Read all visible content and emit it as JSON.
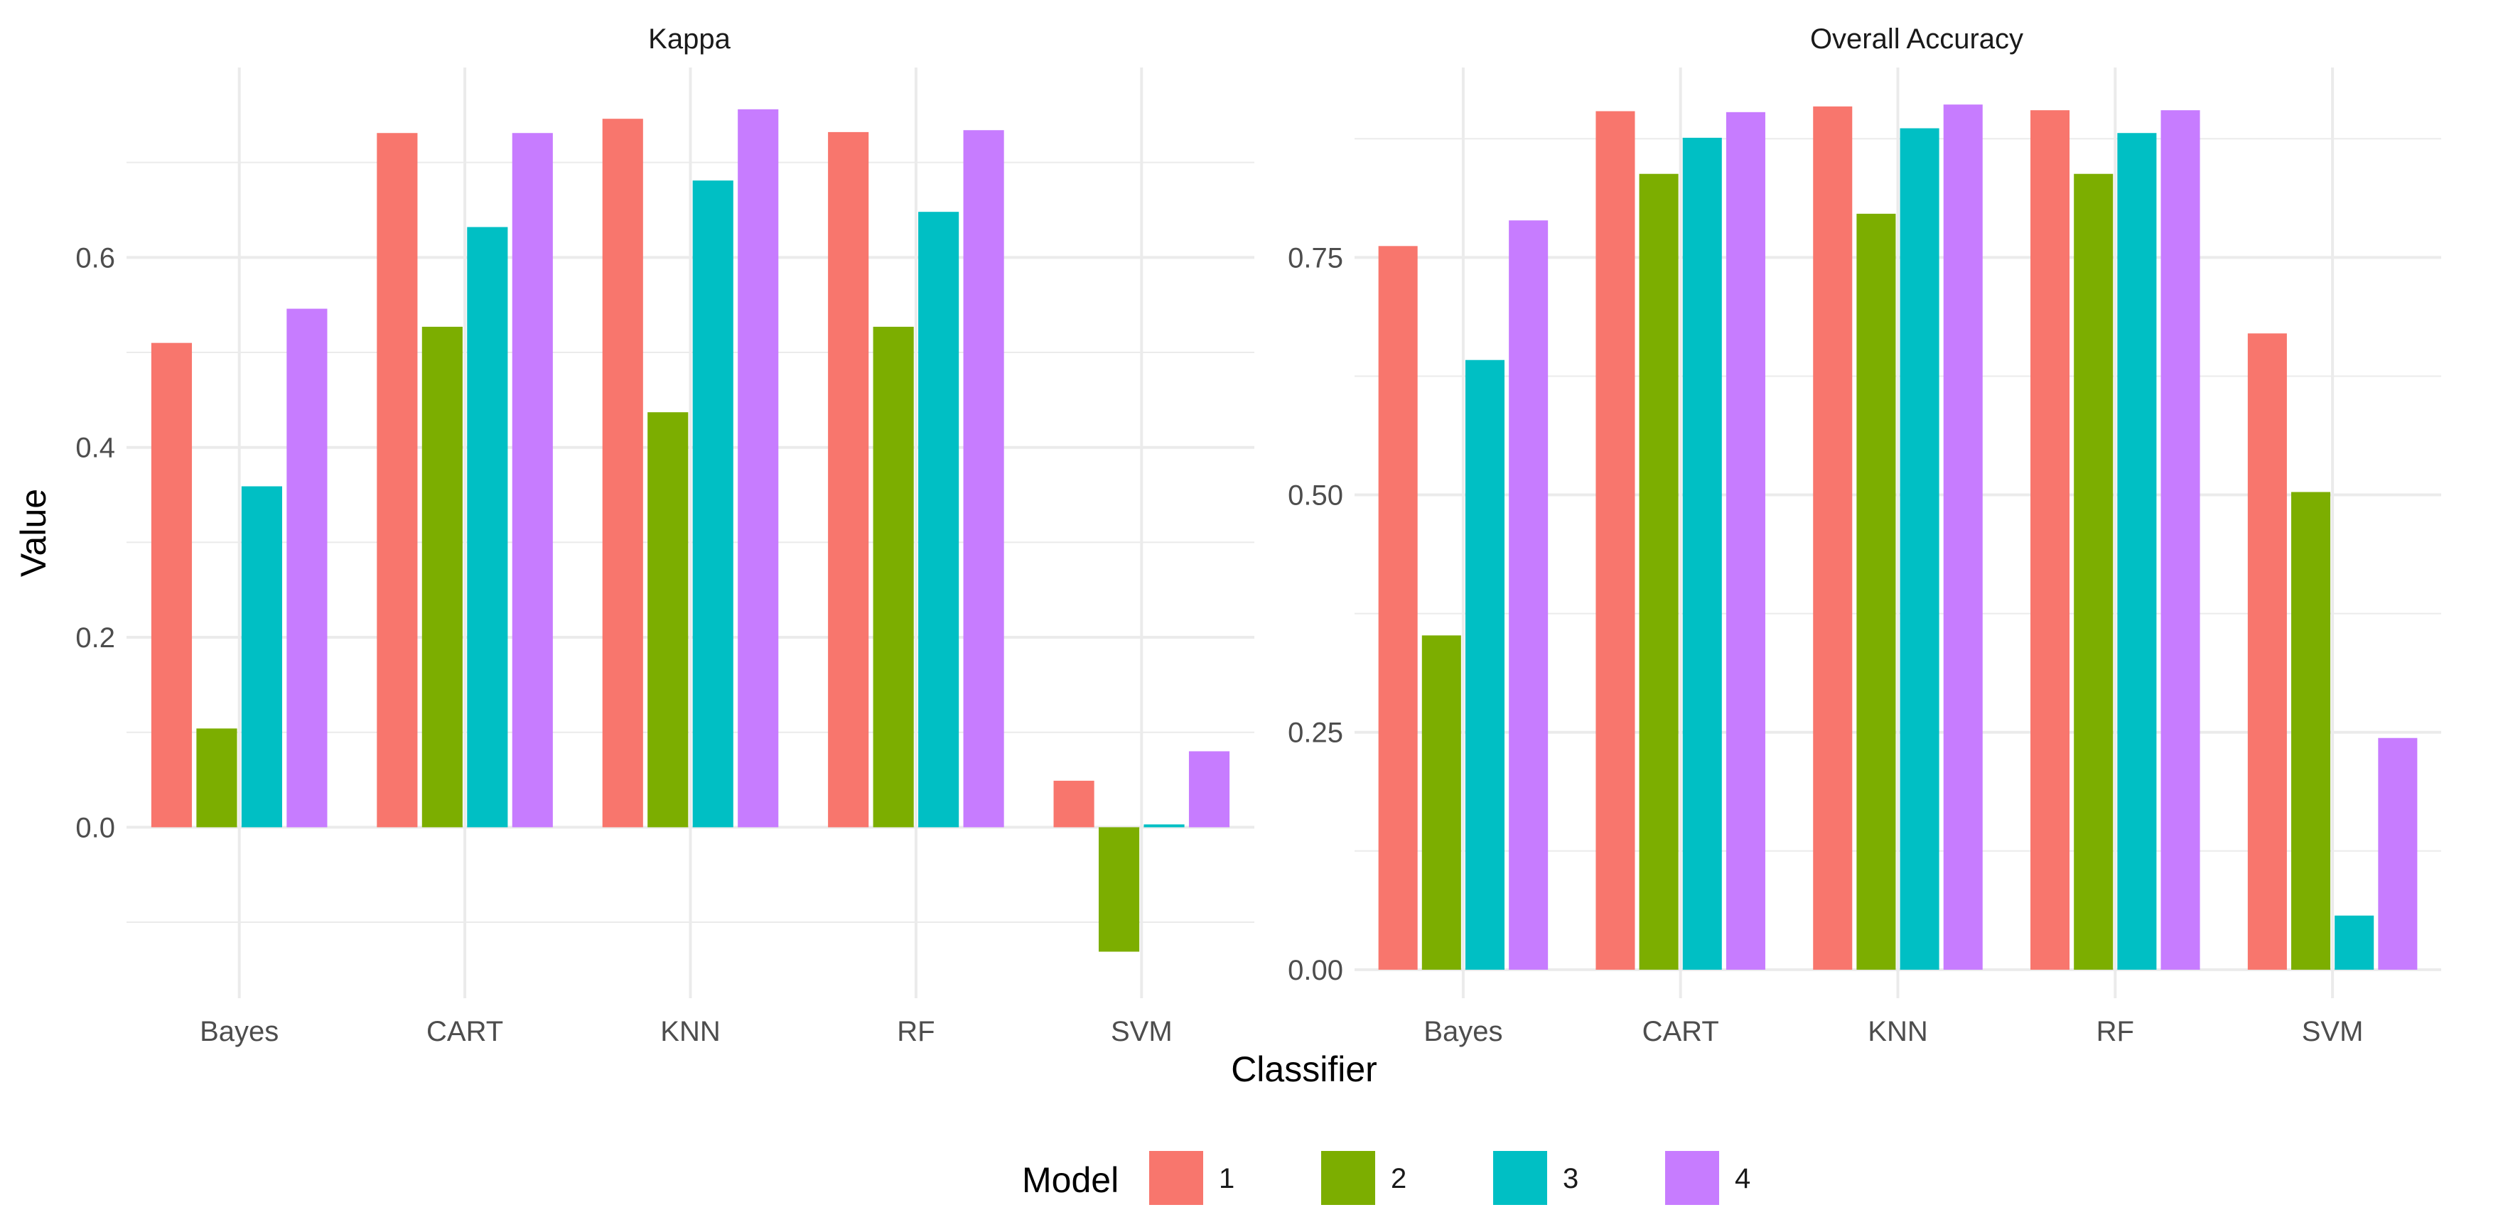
{
  "chart_data": {
    "type": "bar",
    "xlabel": "Classifier",
    "ylabel": "Value",
    "categories": [
      "Bayes",
      "CART",
      "KNN",
      "RF",
      "SVM"
    ],
    "legend": {
      "title": "Model",
      "placement": "bottom",
      "entries": [
        {
          "label": "1",
          "color": "#F8766D"
        },
        {
          "label": "2",
          "color": "#7CAE00"
        },
        {
          "label": "3",
          "color": "#00BFC4"
        },
        {
          "label": "4",
          "color": "#C77CFF"
        }
      ]
    },
    "panels": [
      {
        "title": "Kappa",
        "ylim": [
          -0.18,
          0.8
        ],
        "yticks": [
          0.0,
          0.2,
          0.4,
          0.6
        ],
        "ytick_labels": [
          "0.0",
          "0.2",
          "0.4",
          "0.6"
        ],
        "yminor": [
          -0.1,
          0.1,
          0.3,
          0.5,
          0.7
        ],
        "series": [
          {
            "name": "1",
            "values": [
              0.51,
              0.731,
              0.746,
              0.732,
              0.049
            ]
          },
          {
            "name": "2",
            "values": [
              0.104,
              0.527,
              0.437,
              0.527,
              -0.131
            ]
          },
          {
            "name": "3",
            "values": [
              0.359,
              0.632,
              0.681,
              0.648,
              0.003
            ]
          },
          {
            "name": "4",
            "values": [
              0.546,
              0.731,
              0.756,
              0.734,
              0.08
            ]
          }
        ]
      },
      {
        "title": "Overall Accuracy",
        "ylim": [
          -0.03,
          0.95
        ],
        "yticks": [
          0.0,
          0.25,
          0.5,
          0.75
        ],
        "ytick_labels": [
          "0.00",
          "0.25",
          "0.50",
          "0.75"
        ],
        "yminor": [
          0.125,
          0.375,
          0.625,
          0.875
        ],
        "series": [
          {
            "name": "1",
            "values": [
              0.762,
              0.904,
              0.909,
              0.905,
              0.67
            ]
          },
          {
            "name": "2",
            "values": [
              0.352,
              0.838,
              0.796,
              0.838,
              0.503
            ]
          },
          {
            "name": "3",
            "values": [
              0.642,
              0.876,
              0.886,
              0.881,
              0.057
            ]
          },
          {
            "name": "4",
            "values": [
              0.789,
              0.903,
              0.911,
              0.905,
              0.244
            ]
          }
        ]
      }
    ]
  }
}
